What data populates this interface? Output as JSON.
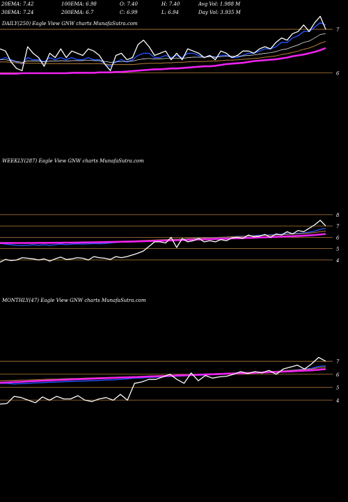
{
  "header": {
    "row1": [
      {
        "text": "20EMA: 7.42"
      },
      {
        "text": "100EMA: 6.98"
      },
      {
        "text": "O: 7.40"
      },
      {
        "text": "H: 7.40"
      },
      {
        "text": "Avg Vol: 1.988 M"
      }
    ],
    "row2": [
      {
        "text": "30EMA: 7.24"
      },
      {
        "text": "200EMA: 6.7"
      },
      {
        "text": "C: 6.99"
      },
      {
        "text": "L: 6.94"
      },
      {
        "text": "Day Vol: 3.935 M"
      }
    ]
  },
  "colors": {
    "background": "#000000",
    "price": "#ffffff",
    "ema_blue": "#2255ff",
    "ema_brown": "#b8803a",
    "ema_pink": "#ee22ee",
    "gridline": "#b8803a",
    "text": "#ffffff"
  },
  "chart_data": [
    {
      "type": "line",
      "title": "DAILY(250) Eagle  View  GNW charts MunafaSutra.com",
      "ylim": [
        5.75,
        7.45
      ],
      "yticks": [
        {
          "label": "7",
          "value": 7
        },
        {
          "label": "6",
          "value": 6
        }
      ],
      "gridlines": [
        7.0,
        6.0
      ],
      "x_count": 60,
      "series": [
        {
          "role": "price",
          "values": [
            6.55,
            6.5,
            6.25,
            6.1,
            6.05,
            6.6,
            6.45,
            6.35,
            6.15,
            6.45,
            6.35,
            6.55,
            6.35,
            6.5,
            6.45,
            6.4,
            6.55,
            6.5,
            6.4,
            6.2,
            6.05,
            6.4,
            6.45,
            6.3,
            6.35,
            6.65,
            6.75,
            6.6,
            6.4,
            6.45,
            6.5,
            6.3,
            6.45,
            6.3,
            6.55,
            6.5,
            6.45,
            6.35,
            6.4,
            6.3,
            6.5,
            6.45,
            6.35,
            6.4,
            6.5,
            6.5,
            6.45,
            6.55,
            6.6,
            6.55,
            6.7,
            6.8,
            6.75,
            6.9,
            6.95,
            7.1,
            6.95,
            7.15,
            7.3,
            7.0
          ]
        },
        {
          "role": "ema_fast",
          "values": [
            6.3,
            6.35,
            6.3,
            6.25,
            6.2,
            6.35,
            6.3,
            6.3,
            6.25,
            6.35,
            6.3,
            6.35,
            6.3,
            6.35,
            6.3,
            6.3,
            6.35,
            6.3,
            6.3,
            6.2,
            6.15,
            6.25,
            6.3,
            6.25,
            6.3,
            6.4,
            6.45,
            6.45,
            6.35,
            6.35,
            6.4,
            6.35,
            6.4,
            6.35,
            6.45,
            6.45,
            6.4,
            6.35,
            6.4,
            6.35,
            6.4,
            6.4,
            6.35,
            6.35,
            6.4,
            6.45,
            6.45,
            6.5,
            6.55,
            6.55,
            6.6,
            6.7,
            6.7,
            6.8,
            6.85,
            6.95,
            6.95,
            7.05,
            7.15,
            7.1
          ]
        },
        {
          "role": "ema_mid",
          "values": [
            6.3,
            6.3,
            6.28,
            6.26,
            6.24,
            6.27,
            6.27,
            6.27,
            6.25,
            6.27,
            6.27,
            6.28,
            6.27,
            6.28,
            6.28,
            6.28,
            6.29,
            6.28,
            6.28,
            6.26,
            6.24,
            6.25,
            6.26,
            6.26,
            6.27,
            6.3,
            6.32,
            6.33,
            6.32,
            6.32,
            6.33,
            6.33,
            6.34,
            6.33,
            6.35,
            6.36,
            6.36,
            6.36,
            6.37,
            6.36,
            6.37,
            6.38,
            6.38,
            6.38,
            6.39,
            6.4,
            6.41,
            6.43,
            6.45,
            6.46,
            6.49,
            6.53,
            6.55,
            6.6,
            6.64,
            6.7,
            6.73,
            6.8,
            6.88,
            6.9
          ]
        },
        {
          "role": "ema_slow",
          "values": [
            6.25,
            6.25,
            6.24,
            6.23,
            6.22,
            6.22,
            6.22,
            6.22,
            6.21,
            6.21,
            6.21,
            6.21,
            6.21,
            6.21,
            6.21,
            6.21,
            6.21,
            6.21,
            6.21,
            6.2,
            6.19,
            6.19,
            6.19,
            6.19,
            6.19,
            6.2,
            6.21,
            6.22,
            6.22,
            6.22,
            6.23,
            6.23,
            6.24,
            6.24,
            6.25,
            6.26,
            6.26,
            6.26,
            6.27,
            6.27,
            6.28,
            6.29,
            6.29,
            6.3,
            6.31,
            6.32,
            6.33,
            6.34,
            6.36,
            6.37,
            6.39,
            6.42,
            6.44,
            6.47,
            6.5,
            6.54,
            6.57,
            6.62,
            6.68,
            6.72
          ]
        },
        {
          "role": "ema_pink",
          "values": [
            5.98,
            5.98,
            5.98,
            5.98,
            5.99,
            5.99,
            5.99,
            5.99,
            5.99,
            5.99,
            5.99,
            5.99,
            5.99,
            6.0,
            6.0,
            6.0,
            6.0,
            6.0,
            6.01,
            6.01,
            6.01,
            6.02,
            6.02,
            6.03,
            6.04,
            6.05,
            6.06,
            6.07,
            6.08,
            6.08,
            6.09,
            6.1,
            6.1,
            6.11,
            6.12,
            6.13,
            6.14,
            6.15,
            6.15,
            6.16,
            6.18,
            6.2,
            6.21,
            6.22,
            6.23,
            6.25,
            6.27,
            6.28,
            6.29,
            6.3,
            6.31,
            6.33,
            6.35,
            6.38,
            6.4,
            6.42,
            6.45,
            6.48,
            6.52,
            6.57
          ]
        }
      ]
    },
    {
      "type": "line",
      "title": "WEEKLY(287) Eagle  View  GNW charts MunafaSutra.com",
      "ylim": [
        3.5,
        8.3
      ],
      "yticks": [
        {
          "label": "8",
          "value": 8
        },
        {
          "label": "7",
          "value": 7
        },
        {
          "label": "6",
          "value": 6
        },
        {
          "label": "5",
          "value": 5
        },
        {
          "label": "4",
          "value": 4
        }
      ],
      "gridlines": [
        8.0,
        7.0,
        6.0,
        5.0,
        4.0
      ],
      "x_count": 60,
      "series": [
        {
          "role": "price",
          "values": [
            3.8,
            4.05,
            3.95,
            4.0,
            4.2,
            4.15,
            4.1,
            4.0,
            4.1,
            3.9,
            4.1,
            4.25,
            4.05,
            4.1,
            4.2,
            4.15,
            4.0,
            4.3,
            4.2,
            4.15,
            4.05,
            4.3,
            4.2,
            4.3,
            4.45,
            4.6,
            4.8,
            5.2,
            5.6,
            5.6,
            5.5,
            6.0,
            5.1,
            5.9,
            5.6,
            5.7,
            5.9,
            5.6,
            5.7,
            5.6,
            5.8,
            5.7,
            5.95,
            6.0,
            5.9,
            6.2,
            6.05,
            6.1,
            6.25,
            6.0,
            6.3,
            6.2,
            6.5,
            6.3,
            6.6,
            6.5,
            6.8,
            7.1,
            7.5,
            7.0
          ]
        },
        {
          "role": "ema_blue",
          "values": [
            5.45,
            5.4,
            5.35,
            5.3,
            5.28,
            5.3,
            5.35,
            5.3,
            5.35,
            5.3,
            5.35,
            5.4,
            5.35,
            5.4,
            5.42,
            5.4,
            5.42,
            5.45,
            5.43,
            5.45,
            5.5,
            5.55,
            5.6,
            5.58,
            5.6,
            5.62,
            5.65,
            5.7,
            5.72,
            5.75,
            5.78,
            5.8,
            5.82,
            5.85,
            5.88,
            5.9,
            5.92,
            5.95,
            5.97,
            5.98,
            6.0,
            6.02,
            6.05,
            6.08,
            6.1,
            6.12,
            6.15,
            6.18,
            6.2,
            6.22,
            6.25,
            6.28,
            6.3,
            6.32,
            6.35,
            6.38,
            6.45,
            6.55,
            6.7,
            6.8
          ]
        },
        {
          "role": "ema_brown",
          "values": [
            5.55,
            5.54,
            5.53,
            5.52,
            5.51,
            5.5,
            5.5,
            5.5,
            5.5,
            5.5,
            5.51,
            5.52,
            5.53,
            5.54,
            5.55,
            5.56,
            5.57,
            5.58,
            5.59,
            5.6,
            5.62,
            5.63,
            5.65,
            5.66,
            5.68,
            5.7,
            5.72,
            5.74,
            5.76,
            5.78,
            5.8,
            5.82,
            5.84,
            5.86,
            5.88,
            5.9,
            5.92,
            5.94,
            5.96,
            5.98,
            6.0,
            6.02,
            6.04,
            6.06,
            6.08,
            6.1,
            6.12,
            6.14,
            6.16,
            6.18,
            6.2,
            6.22,
            6.25,
            6.28,
            6.3,
            6.33,
            6.37,
            6.42,
            6.5,
            6.55
          ]
        },
        {
          "role": "ema_pink",
          "values": [
            5.5,
            5.5,
            5.5,
            5.5,
            5.5,
            5.5,
            5.5,
            5.51,
            5.51,
            5.51,
            5.52,
            5.52,
            5.53,
            5.53,
            5.54,
            5.55,
            5.55,
            5.56,
            5.57,
            5.58,
            5.59,
            5.6,
            5.61,
            5.62,
            5.63,
            5.64,
            5.66,
            5.67,
            5.68,
            5.7,
            5.71,
            5.73,
            5.74,
            5.76,
            5.77,
            5.79,
            5.8,
            5.82,
            5.83,
            5.85,
            5.87,
            5.88,
            5.9,
            5.92,
            5.93,
            5.95,
            5.97,
            5.99,
            6.0,
            6.02,
            6.04,
            6.06,
            6.08,
            6.1,
            6.12,
            6.14,
            6.17,
            6.2,
            6.25,
            6.3
          ]
        }
      ]
    },
    {
      "type": "line",
      "title": "MONTHLY(47) Eagle  View  GNW charts MunafaSutra.com",
      "ylim": [
        3.3,
        7.6
      ],
      "yticks": [
        {
          "label": "7",
          "value": 7
        },
        {
          "label": "6",
          "value": 6
        },
        {
          "label": "5",
          "value": 5
        },
        {
          "label": "4",
          "value": 4
        }
      ],
      "gridlines": [
        7.0,
        6.0,
        5.0,
        4.0
      ],
      "x_count": 47,
      "series": [
        {
          "role": "price",
          "values": [
            3.7,
            3.75,
            4.3,
            4.2,
            4.0,
            3.8,
            4.25,
            4.0,
            4.3,
            4.1,
            4.1,
            4.35,
            4.0,
            3.9,
            4.1,
            4.2,
            4.0,
            4.45,
            4.0,
            5.3,
            5.4,
            5.6,
            5.6,
            5.8,
            6.0,
            5.6,
            5.3,
            6.1,
            5.5,
            5.9,
            5.7,
            5.8,
            5.85,
            6.0,
            6.2,
            6.05,
            6.2,
            6.1,
            6.3,
            6.0,
            6.4,
            6.55,
            6.7,
            6.4,
            6.8,
            7.3,
            7.0
          ]
        },
        {
          "role": "ema_blue",
          "values": [
            5.3,
            5.3,
            5.25,
            5.28,
            5.3,
            5.33,
            5.35,
            5.38,
            5.4,
            5.42,
            5.45,
            5.47,
            5.48,
            5.5,
            5.52,
            5.55,
            5.57,
            5.6,
            5.65,
            5.7,
            5.72,
            5.75,
            5.78,
            5.8,
            5.83,
            5.85,
            5.87,
            5.9,
            5.92,
            5.94,
            5.97,
            5.99,
            6.02,
            6.04,
            6.06,
            6.09,
            6.1,
            6.13,
            6.16,
            6.2,
            6.25,
            6.3,
            6.35,
            6.4,
            6.45,
            6.6,
            6.65
          ]
        },
        {
          "role": "ema_brown",
          "values": [
            5.5,
            5.52,
            5.53,
            5.55,
            5.56,
            5.58,
            5.6,
            5.62,
            5.63,
            5.65,
            5.67,
            5.68,
            5.7,
            5.72,
            5.74,
            5.75,
            5.77,
            5.79,
            5.8,
            5.82,
            5.84,
            5.86,
            5.88,
            5.9,
            5.92,
            5.94,
            5.96,
            5.98,
            6.0,
            6.02,
            6.04,
            6.06,
            6.08,
            6.1,
            6.12,
            6.14,
            6.16,
            6.18,
            6.2,
            6.23,
            6.26,
            6.3,
            6.33,
            6.37,
            6.4,
            6.5,
            6.55
          ]
        },
        {
          "role": "ema_pink",
          "values": [
            5.35,
            5.37,
            5.4,
            5.42,
            5.45,
            5.47,
            5.5,
            5.52,
            5.55,
            5.57,
            5.6,
            5.62,
            5.64,
            5.66,
            5.68,
            5.7,
            5.72,
            5.74,
            5.76,
            5.78,
            5.8,
            5.82,
            5.84,
            5.86,
            5.88,
            5.9,
            5.92,
            5.94,
            5.96,
            5.98,
            6.0,
            6.02,
            6.04,
            6.06,
            6.08,
            6.1,
            6.12,
            6.14,
            6.16,
            6.18,
            6.2,
            6.22,
            6.25,
            6.28,
            6.3,
            6.35,
            6.4
          ]
        }
      ]
    }
  ]
}
